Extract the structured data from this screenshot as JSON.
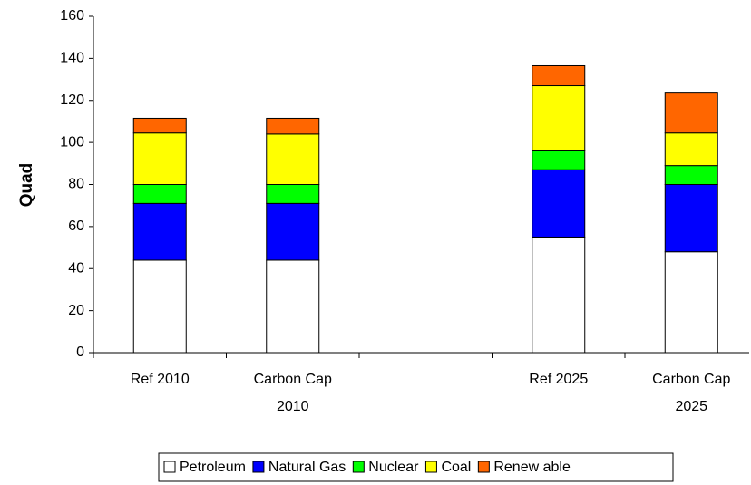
{
  "chart_data": {
    "type": "stacked-bar",
    "y_label": "Quad",
    "categories": [
      "Ref 2010",
      "Carbon Cap 2010",
      null,
      "Ref 2025",
      "Carbon Cap 2025"
    ],
    "series": [
      {
        "name": "Petroleum",
        "color": "#ffffff",
        "values": [
          44,
          44,
          null,
          55,
          48
        ]
      },
      {
        "name": "Natural Gas",
        "color": "#0000ff",
        "values": [
          27,
          27,
          null,
          32,
          32
        ]
      },
      {
        "name": "Nuclear",
        "color": "#00ff00",
        "values": [
          9,
          9,
          null,
          9,
          9
        ]
      },
      {
        "name": "Coal",
        "color": "#ffff00",
        "values": [
          24.5,
          24,
          null,
          31,
          15.5
        ]
      },
      {
        "name": "Renew able",
        "color": "#ff6600",
        "values": [
          7,
          7.5,
          null,
          9.5,
          19
        ]
      }
    ],
    "ylim": [
      0,
      160
    ],
    "yticks": [
      0,
      20,
      40,
      60,
      80,
      100,
      120,
      140,
      160
    ],
    "grid": false
  }
}
